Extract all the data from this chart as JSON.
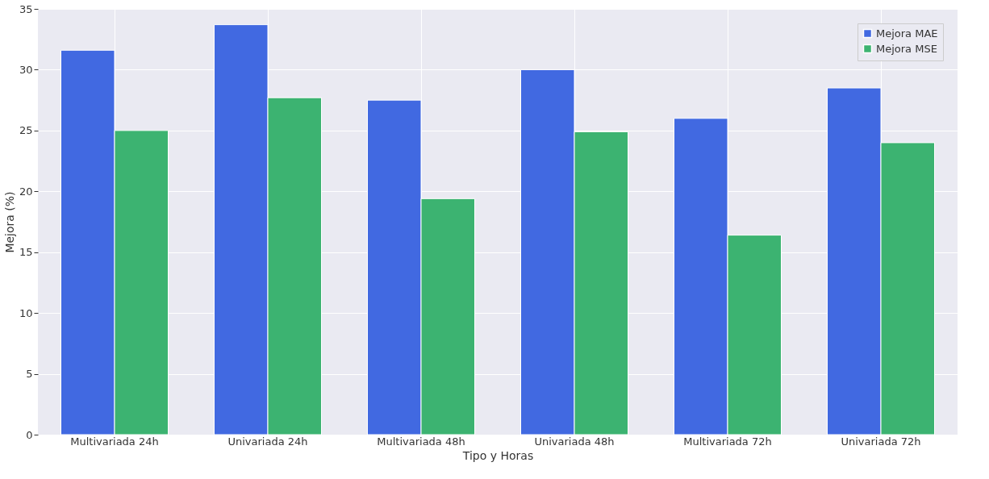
{
  "chart_data": {
    "type": "bar",
    "xlabel": "Tipo y Horas",
    "ylabel": "Mejora (%)",
    "categories": [
      "Multivariada 24h",
      "Univariada 24h",
      "Multivariada 48h",
      "Univariada 48h",
      "Multivariada 72h",
      "Univariada 72h"
    ],
    "series": [
      {
        "name": "Mejora MAE",
        "color": "#4169e1",
        "values": [
          31.6,
          33.7,
          27.5,
          30.0,
          26.0,
          28.5
        ]
      },
      {
        "name": "Mejora MSE",
        "color": "#3cb371",
        "values": [
          25.0,
          27.7,
          19.4,
          24.9,
          16.4,
          24.0
        ]
      }
    ],
    "ylim": [
      0,
      35
    ],
    "yticks": [
      0,
      5,
      10,
      15,
      20,
      25,
      30,
      35
    ],
    "grid": true,
    "legend": "top right"
  }
}
